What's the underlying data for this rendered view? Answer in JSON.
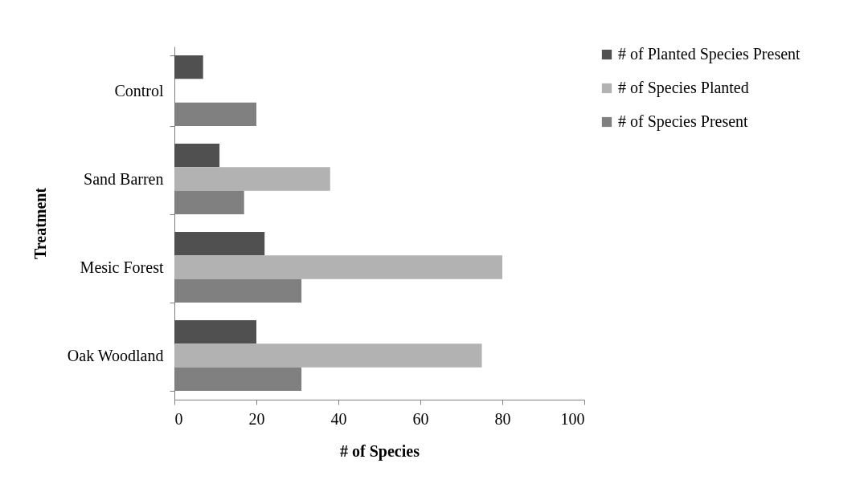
{
  "chart_data": {
    "type": "bar",
    "orientation": "horizontal",
    "xlabel": "# of Species",
    "ylabel": "Treatment",
    "categories": [
      "Control",
      "Sand Barren",
      "Mesic Forest",
      "Oak Woodland"
    ],
    "series": [
      {
        "name": "# of Planted Species Present",
        "color": "#505050",
        "values": [
          7,
          11,
          22,
          20
        ]
      },
      {
        "name": "# of Species Planted",
        "color": "#b2b2b2",
        "values": [
          0,
          38,
          80,
          75
        ]
      },
      {
        "name": "# of Species Present",
        "color": "#808080",
        "values": [
          20,
          17,
          31,
          31
        ]
      }
    ],
    "xlim": [
      0,
      100
    ],
    "xticks": [
      0,
      20,
      40,
      60,
      80,
      100
    ],
    "grid": false,
    "legend": "right"
  }
}
